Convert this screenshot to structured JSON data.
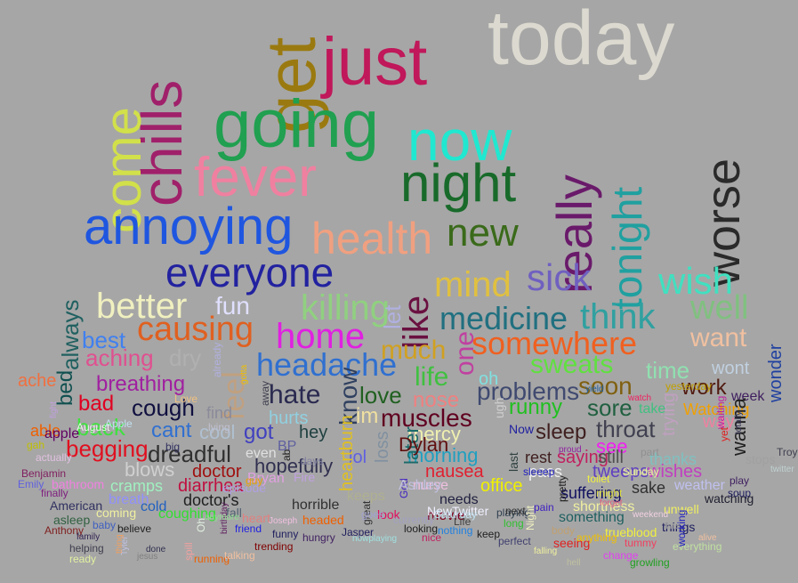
{
  "words": [
    {
      "text": "today",
      "color": "#dcdad0"
    },
    {
      "text": "get",
      "color": "#9a7a10"
    },
    {
      "text": "chills",
      "color": "#a0206a"
    },
    {
      "text": "just",
      "color": "#c0185a"
    },
    {
      "text": "come",
      "color": "#d2e04a"
    },
    {
      "text": "going",
      "color": "#20a050"
    },
    {
      "text": "now",
      "color": "#20e8d0"
    },
    {
      "text": "fever",
      "color": "#f080a0"
    },
    {
      "text": "night",
      "color": "#186a2a"
    },
    {
      "text": "really",
      "color": "#6a1a6a"
    },
    {
      "text": "tonight",
      "color": "#20a0a0"
    },
    {
      "text": "worse",
      "color": "#2a2a2a"
    },
    {
      "text": "annoying",
      "color": "#1f56e0"
    },
    {
      "text": "health",
      "color": "#f0a080"
    },
    {
      "text": "new",
      "color": "#3a6a1a"
    },
    {
      "text": "everyone",
      "color": "#2222a0"
    },
    {
      "text": "mind",
      "color": "#e0c040"
    },
    {
      "text": "sick",
      "color": "#7060c0"
    },
    {
      "text": "wish",
      "color": "#40e0c0"
    },
    {
      "text": "like",
      "color": "#6a1040"
    },
    {
      "text": "better",
      "color": "#f0f0c0"
    },
    {
      "text": "fun",
      "color": "#e0e0ff"
    },
    {
      "text": "killing",
      "color": "#90d080"
    },
    {
      "text": "let",
      "color": "#b0b0e0"
    },
    {
      "text": "well",
      "color": "#80c080"
    },
    {
      "text": "medicine",
      "color": "#207080"
    },
    {
      "text": "think",
      "color": "#30a0a0"
    },
    {
      "text": "causing",
      "color": "#e06020"
    },
    {
      "text": "home",
      "color": "#e020e0"
    },
    {
      "text": "much",
      "color": "#d0a020"
    },
    {
      "text": "somewhere",
      "color": "#f06020"
    },
    {
      "text": "want",
      "color": "#f0c0a0"
    },
    {
      "text": "best",
      "color": "#4080f0"
    },
    {
      "text": "always",
      "color": "#206060"
    },
    {
      "text": "aching",
      "color": "#e05090"
    },
    {
      "text": "dry",
      "color": "#b0b0b0"
    },
    {
      "text": "headache",
      "color": "#3070d0"
    },
    {
      "text": "one",
      "color": "#c040a0"
    },
    {
      "text": "sweats",
      "color": "#60e040"
    },
    {
      "text": "time",
      "color": "#90e0b0"
    },
    {
      "text": "wont",
      "color": "#c0d0e0"
    },
    {
      "text": "wonder",
      "color": "#2040a0"
    },
    {
      "text": "ache",
      "color": "#f07040"
    },
    {
      "text": "bed",
      "color": "#105050"
    },
    {
      "text": "breathing",
      "color": "#a020a0"
    },
    {
      "text": "feel",
      "color": "#c0a080"
    },
    {
      "text": "life",
      "color": "#40c040"
    },
    {
      "text": "oh",
      "color": "#80e0e0"
    },
    {
      "text": "problems",
      "color": "#404a70"
    },
    {
      "text": "soon",
      "color": "#806010"
    },
    {
      "text": "work",
      "color": "#501a10"
    },
    {
      "text": "week",
      "color": "#402060"
    },
    {
      "text": "bad",
      "color": "#e00020"
    },
    {
      "text": "cough",
      "color": "#101040"
    },
    {
      "text": "find",
      "color": "#8a8a9a"
    },
    {
      "text": "hate",
      "color": "#2a2a50"
    },
    {
      "text": "know",
      "color": "#304060"
    },
    {
      "text": "love",
      "color": "#206020"
    },
    {
      "text": "nose",
      "color": "#f08080"
    },
    {
      "text": "runny",
      "color": "#20c020"
    },
    {
      "text": "sore",
      "color": "#206040"
    },
    {
      "text": "take",
      "color": "#40c080"
    },
    {
      "text": "Watching",
      "color": "#f0a000"
    },
    {
      "text": "way",
      "color": "#f080a0"
    },
    {
      "text": "able",
      "color": "#f06000"
    },
    {
      "text": "back",
      "color": "#40e040"
    },
    {
      "text": "cant",
      "color": "#3070d0"
    },
    {
      "text": "cool",
      "color": "#b0c0d0"
    },
    {
      "text": "got",
      "color": "#4040c0"
    },
    {
      "text": "hurts",
      "color": "#90d0e0"
    },
    {
      "text": "muscles",
      "color": "#600020"
    },
    {
      "text": "im",
      "color": "#f0e0a0"
    },
    {
      "text": "Now",
      "color": "#2020a0"
    },
    {
      "text": "sleep",
      "color": "#402020"
    },
    {
      "text": "throat",
      "color": "#404050"
    },
    {
      "text": "trying",
      "color": "#c0a0c0"
    },
    {
      "text": "begging",
      "color": "#e01020"
    },
    {
      "text": "dreadful",
      "color": "#303030"
    },
    {
      "text": "hey",
      "color": "#204040"
    },
    {
      "text": "mercy",
      "color": "#f0f0b0"
    },
    {
      "text": "see",
      "color": "#f020f0"
    },
    {
      "text": "wanna",
      "color": "#202020"
    },
    {
      "text": "blows",
      "color": "#d0d0d0"
    },
    {
      "text": "doctor",
      "color": "#a01010"
    },
    {
      "text": "even",
      "color": "#e0e0e0"
    },
    {
      "text": "hopefully",
      "color": "#303050"
    },
    {
      "text": "lol",
      "color": "#6060e0"
    },
    {
      "text": "morning",
      "color": "#20a0c0"
    },
    {
      "text": "rest",
      "color": "#402020"
    },
    {
      "text": "saying",
      "color": "#c02060"
    },
    {
      "text": "still",
      "color": "#505050"
    },
    {
      "text": "thanks",
      "color": "#80c0c0"
    },
    {
      "text": "cramps",
      "color": "#a0f0c0"
    },
    {
      "text": "diarrhea",
      "color": "#c01040"
    },
    {
      "text": "nausea",
      "color": "#e02030"
    },
    {
      "text": "tweeps",
      "color": "#6040c0"
    },
    {
      "text": "wishes",
      "color": "#c040c0"
    },
    {
      "text": "later",
      "color": "#1a6a6a"
    },
    {
      "text": "loss",
      "color": "#8090a0"
    },
    {
      "text": "pass",
      "color": "#f0f0f0"
    },
    {
      "text": "heartburn",
      "color": "#e0c020"
    },
    {
      "text": "nurse",
      "color": "#f0c0e0"
    },
    {
      "text": "office",
      "color": "#f0f000"
    },
    {
      "text": "bathroom",
      "color": "#f080e0"
    },
    {
      "text": "breath",
      "color": "#9090ff"
    },
    {
      "text": "doctor's",
      "color": "#202020"
    },
    {
      "text": "keeps",
      "color": "#b0b090"
    },
    {
      "text": "sake",
      "color": "#303030"
    },
    {
      "text": "suffering",
      "color": "#101060"
    },
    {
      "text": "weather",
      "color": "#c0c0f0"
    },
    {
      "text": "cold",
      "color": "#2060c0"
    },
    {
      "text": "coughing",
      "color": "#30e030"
    },
    {
      "text": "horrible",
      "color": "#303030"
    },
    {
      "text": "needs",
      "color": "#202040"
    },
    {
      "text": "shortness",
      "color": "#f0f0a0"
    },
    {
      "text": "watching",
      "color": "#202030"
    },
    {
      "text": "movie",
      "color": "#800020"
    },
    {
      "text": "NewTwitter",
      "color": "#f0f0ff"
    },
    {
      "text": "something",
      "color": "#206060"
    },
    {
      "text": "unwell",
      "color": "#f0f060"
    },
    {
      "text": "American",
      "color": "#303060"
    },
    {
      "text": "coming",
      "color": "#f0f0a0"
    },
    {
      "text": "fall",
      "color": "#506070"
    },
    {
      "text": "heart",
      "color": "#e08080"
    },
    {
      "text": "headed",
      "color": "#f06000"
    },
    {
      "text": "look",
      "color": "#e01060"
    },
    {
      "text": "playing",
      "color": "#304050"
    },
    {
      "text": "things",
      "color": "#202060"
    },
    {
      "text": "trueblood",
      "color": "#f0f040"
    },
    {
      "text": "asleep",
      "color": "#306040"
    },
    {
      "text": "baby",
      "color": "#4060c0"
    },
    {
      "text": "believe",
      "color": "#202020"
    },
    {
      "text": "friend",
      "color": "#2020e0"
    },
    {
      "text": "funny",
      "color": "#202060"
    },
    {
      "text": "hungry",
      "color": "#402060"
    },
    {
      "text": "Jasper",
      "color": "#202060"
    },
    {
      "text": "looking",
      "color": "#202020"
    },
    {
      "text": "nothing",
      "color": "#2080e0"
    },
    {
      "text": "perfect",
      "color": "#404070"
    },
    {
      "text": "seeing",
      "color": "#e02020"
    },
    {
      "text": "tummy",
      "color": "#f04060"
    },
    {
      "text": "anything",
      "color": "#f0c000"
    },
    {
      "text": "change",
      "color": "#e040f0"
    },
    {
      "text": "everything",
      "color": "#c0e0a0"
    },
    {
      "text": "growling",
      "color": "#20a020"
    },
    {
      "text": "helping",
      "color": "#404050"
    },
    {
      "text": "ready",
      "color": "#e0f0a0"
    },
    {
      "text": "running",
      "color": "#f06000"
    },
    {
      "text": "talking",
      "color": "#f0c0a0"
    },
    {
      "text": "trending",
      "color": "#800000"
    },
    {
      "text": "Anthony",
      "color": "#802020"
    },
    {
      "text": "Benjamin",
      "color": "#802060"
    },
    {
      "text": "Emily",
      "color": "#6060e0"
    },
    {
      "text": "finally",
      "color": "#802080"
    },
    {
      "text": "gah",
      "color": "#c0c000"
    },
    {
      "text": "actually",
      "color": "#e0c0e0"
    },
    {
      "text": "August",
      "color": "#f0f0f0"
    },
    {
      "text": "Apple",
      "color": "#c0e0f0"
    },
    {
      "text": "apple",
      "color": "#600060"
    },
    {
      "text": "already",
      "color": "#b0b0e0"
    },
    {
      "text": "away",
      "color": "#404050"
    },
    {
      "text": "big",
      "color": "#303060"
    },
    {
      "text": "BP",
      "color": "#6060a0"
    },
    {
      "text": "ab",
      "color": "#202020"
    },
    {
      "text": "Fire",
      "color": "#c0a0e0"
    },
    {
      "text": "days",
      "color": "#8080a0"
    },
    {
      "text": "Dylan",
      "color": "#601010"
    },
    {
      "text": "great",
      "color": "#303030"
    },
    {
      "text": "goes",
      "color": "#a0a0d0"
    },
    {
      "text": "God",
      "color": "#4020c0"
    },
    {
      "text": "ugh",
      "color": "#d0d0d0"
    },
    {
      "text": "last",
      "color": "#304040"
    },
    {
      "text": "Life",
      "color": "#404040"
    },
    {
      "text": "keep",
      "color": "#202020"
    },
    {
      "text": "long",
      "color": "#30c030"
    },
    {
      "text": "nice",
      "color": "#c02060"
    },
    {
      "text": "pain",
      "color": "#4020c0"
    },
    {
      "text": "next",
      "color": "#303030"
    },
    {
      "text": "Night",
      "color": "#f0f0c0"
    },
    {
      "text": "part",
      "color": "#909090"
    },
    {
      "text": "might",
      "color": "#e0e040"
    },
    {
      "text": "Sunday",
      "color": "#f0f0a0"
    },
    {
      "text": "pretty",
      "color": "#202020"
    },
    {
      "text": "play",
      "color": "#402060"
    },
    {
      "text": "soup",
      "color": "#202060"
    },
    {
      "text": "Troy",
      "color": "#404050"
    },
    {
      "text": "twitter",
      "color": "#c0d0d0"
    },
    {
      "text": "stops",
      "color": "#a0a0a0"
    },
    {
      "text": "working",
      "color": "#2020c0"
    },
    {
      "text": "waiting",
      "color": "#c020a0"
    },
    {
      "text": "yet",
      "color": "#e02020"
    },
    {
      "text": "yield",
      "color": "#2060a0"
    },
    {
      "text": "watch",
      "color": "#f02060"
    },
    {
      "text": "totally",
      "color": "#303050"
    },
    {
      "text": "toilet",
      "color": "#f0f040"
    },
    {
      "text": "proud",
      "color": "#9020a0"
    },
    {
      "text": "sleeep",
      "color": "#2020c0"
    },
    {
      "text": "Tyler",
      "color": "#c0c0e0"
    },
    {
      "text": "jesus",
      "color": "#808080"
    },
    {
      "text": "thing",
      "color": "#f0a060"
    },
    {
      "text": "spill",
      "color": "#f0a0a0"
    },
    {
      "text": "Oh",
      "color": "#e0f0e0"
    },
    {
      "text": "birthday",
      "color": "#602060"
    },
    {
      "text": "currently",
      "color": "#a0a0c0"
    },
    {
      "text": "body",
      "color": "#c0a070"
    },
    {
      "text": "done",
      "color": "#303050"
    },
    {
      "text": "family",
      "color": "#302050"
    },
    {
      "text": "fight",
      "color": "#c0a0e0"
    },
    {
      "text": "nowplaying",
      "color": "#a0e0e0"
    },
    {
      "text": "Saturday",
      "color": "#c0e0f0"
    },
    {
      "text": "episode",
      "color": "#b0a0e0"
    },
    {
      "text": "Bryan",
      "color": "#e0a0e0"
    },
    {
      "text": "Ashley",
      "color": "#c0c0e0"
    },
    {
      "text": "Joseph",
      "color": "#f0c0e0"
    },
    {
      "text": "Love",
      "color": "#f0c080"
    },
    {
      "text": "guy",
      "color": "#f0a000"
    },
    {
      "text": "gotta",
      "color": "#f0c000"
    },
    {
      "text": "lying",
      "color": "#c0c0d0"
    },
    {
      "text": "yesterday",
      "color": "#c0a000"
    },
    {
      "text": "anymore",
      "color": "#90e090"
    },
    {
      "text": "falling",
      "color": "#f0f0a0"
    },
    {
      "text": "hell",
      "color": "#c0c0a0"
    },
    {
      "text": "forget",
      "color": "#e06080"
    },
    {
      "text": "weekend",
      "color": "#f0d0e0"
    },
    {
      "text": "fine",
      "color": "#a0a0a0"
    },
    {
      "text": "alive",
      "color": "#f0c0a0"
    }
  ]
}
